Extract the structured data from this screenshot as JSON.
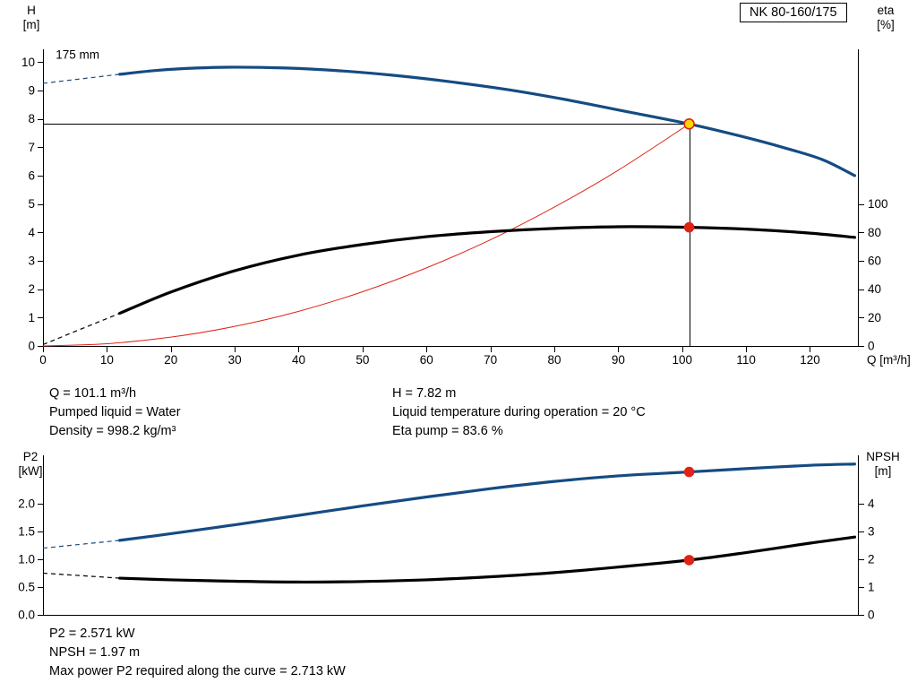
{
  "model_label": "NK 80-160/175",
  "impeller_label": "175 mm",
  "colors": {
    "curve_blue": "#154b82",
    "curve_black": "#000000",
    "curve_red": "#e02317",
    "duty_yellow": "#ffd900"
  },
  "info_top": {
    "left": [
      "Q = 101.1 m³/h",
      "Pumped liquid = Water",
      "Density = 998.2 kg/m³"
    ],
    "right": [
      "H = 7.82 m",
      "Liquid temperature during operation = 20 °C",
      "Eta pump = 83.6 %"
    ]
  },
  "info_bottom": [
    "P2 = 2.571 kW",
    "NPSH = 1.97 m",
    "Max power P2 required along the curve = 2.713 kW"
  ],
  "chart_data": [
    {
      "id": "head_eta",
      "type": "line",
      "x": {
        "label": "Q [m³/h]",
        "min": 0,
        "max": 127.5,
        "decimals": 0,
        "ticks": [
          0,
          10,
          20,
          30,
          40,
          50,
          60,
          70,
          80,
          90,
          100,
          110,
          120
        ]
      },
      "y_left": {
        "label_lines": [
          "H",
          "[m]"
        ],
        "min": 0,
        "max": 10.45,
        "decimals": 0,
        "ticks": [
          0,
          1,
          2,
          3,
          4,
          5,
          6,
          7,
          8,
          9,
          10
        ]
      },
      "y_right": {
        "label_lines": [
          "eta",
          "[%]"
        ],
        "min": 0,
        "max": 209,
        "decimals": 0,
        "ticks": [
          0,
          20,
          40,
          60,
          80,
          100
        ]
      },
      "annotation": {
        "text": "175 mm",
        "x": 2,
        "y": 10.12
      },
      "series": [
        {
          "name": "system-curve",
          "axis": "left",
          "color": "#e02317",
          "width": 1,
          "points": [
            [
              0,
              0
            ],
            [
              10,
              0.08
            ],
            [
              20,
              0.31
            ],
            [
              30,
              0.69
            ],
            [
              40,
              1.22
            ],
            [
              50,
              1.91
            ],
            [
              60,
              2.75
            ],
            [
              70,
              3.74
            ],
            [
              80,
              4.89
            ],
            [
              90,
              6.19
            ],
            [
              101.1,
              7.82
            ]
          ]
        },
        {
          "name": "head-curve-175mm",
          "axis": "left",
          "color": "#154b82",
          "width": 3.2,
          "dash_points": [
            [
              0,
              9.25
            ],
            [
              12,
              9.57
            ]
          ],
          "points": [
            [
              12,
              9.57
            ],
            [
              18,
              9.71
            ],
            [
              24,
              9.79
            ],
            [
              30,
              9.82
            ],
            [
              38,
              9.79
            ],
            [
              46,
              9.7
            ],
            [
              55,
              9.53
            ],
            [
              64,
              9.3
            ],
            [
              73,
              9.02
            ],
            [
              82,
              8.67
            ],
            [
              91,
              8.27
            ],
            [
              101.1,
              7.82
            ],
            [
              109,
              7.4
            ],
            [
              116,
              6.98
            ],
            [
              122,
              6.56
            ],
            [
              127,
              6.0
            ]
          ]
        },
        {
          "name": "eta-curve",
          "axis": "right",
          "color": "#000000",
          "width": 3.2,
          "dash_points": [
            [
              0,
              1
            ],
            [
              12,
              23
            ]
          ],
          "points": [
            [
              12,
              23
            ],
            [
              20,
              38
            ],
            [
              30,
              53
            ],
            [
              40,
              64
            ],
            [
              50,
              71.5
            ],
            [
              60,
              77
            ],
            [
              70,
              80.5
            ],
            [
              80,
              82.8
            ],
            [
              90,
              84
            ],
            [
              101.1,
              83.6
            ],
            [
              110,
              82.3
            ],
            [
              120,
              79.5
            ],
            [
              127,
              76.5
            ]
          ]
        }
      ],
      "guides": [
        {
          "name": "duty-vline",
          "type": "v",
          "x": 101.1,
          "y": 7.82
        },
        {
          "name": "duty-hline",
          "type": "h",
          "x": 101.1,
          "y": 7.82
        }
      ],
      "markers": [
        {
          "name": "eta-point",
          "axis": "right",
          "x": 101.1,
          "y": 83.6,
          "fill": "#e02317",
          "stroke": "#e02317",
          "r": 5
        },
        {
          "name": "duty-point",
          "axis": "left",
          "x": 101.1,
          "y": 7.82,
          "fill": "#ffd900",
          "stroke": "#e02317",
          "r": 5.5
        }
      ]
    },
    {
      "id": "p2_npsh",
      "type": "line",
      "x": {
        "label": "",
        "min": 0,
        "max": 127.5,
        "decimals": 0,
        "ticks": []
      },
      "y_left": {
        "label_lines": [
          "P2",
          "[kW]"
        ],
        "min": 0,
        "max": 2.87,
        "decimals": 1,
        "ticks": [
          0.0,
          0.5,
          1.0,
          1.5,
          2.0
        ]
      },
      "y_right": {
        "label_lines": [
          "NPSH",
          "[m]"
        ],
        "min": 0,
        "max": 5.74,
        "decimals": 0,
        "ticks": [
          0,
          1,
          2,
          3,
          4
        ]
      },
      "series": [
        {
          "name": "p2-curve",
          "axis": "left",
          "color": "#154b82",
          "width": 3.2,
          "dash_points": [
            [
              0,
              1.2
            ],
            [
              12,
              1.34
            ]
          ],
          "points": [
            [
              12,
              1.34
            ],
            [
              20,
              1.46
            ],
            [
              30,
              1.62
            ],
            [
              40,
              1.79
            ],
            [
              50,
              1.96
            ],
            [
              60,
              2.12
            ],
            [
              70,
              2.27
            ],
            [
              80,
              2.4
            ],
            [
              90,
              2.5
            ],
            [
              101.1,
              2.571
            ],
            [
              110,
              2.63
            ],
            [
              120,
              2.69
            ],
            [
              127,
              2.713
            ]
          ]
        },
        {
          "name": "npsh-curve",
          "axis": "right",
          "color": "#000000",
          "width": 3.2,
          "dash_points": [
            [
              0,
              1.5
            ],
            [
              12,
              1.32
            ]
          ],
          "points": [
            [
              12,
              1.32
            ],
            [
              20,
              1.26
            ],
            [
              30,
              1.21
            ],
            [
              40,
              1.18
            ],
            [
              50,
              1.2
            ],
            [
              60,
              1.26
            ],
            [
              70,
              1.37
            ],
            [
              80,
              1.52
            ],
            [
              90,
              1.72
            ],
            [
              101.1,
              1.97
            ],
            [
              110,
              2.24
            ],
            [
              120,
              2.58
            ],
            [
              127,
              2.8
            ]
          ]
        }
      ],
      "guides": [],
      "markers": [
        {
          "name": "p2-point",
          "axis": "left",
          "x": 101.1,
          "y": 2.571,
          "fill": "#e02317",
          "stroke": "#e02317",
          "r": 5
        },
        {
          "name": "npsh-point",
          "axis": "right",
          "x": 101.1,
          "y": 1.97,
          "fill": "#e02317",
          "stroke": "#e02317",
          "r": 5
        }
      ]
    }
  ]
}
